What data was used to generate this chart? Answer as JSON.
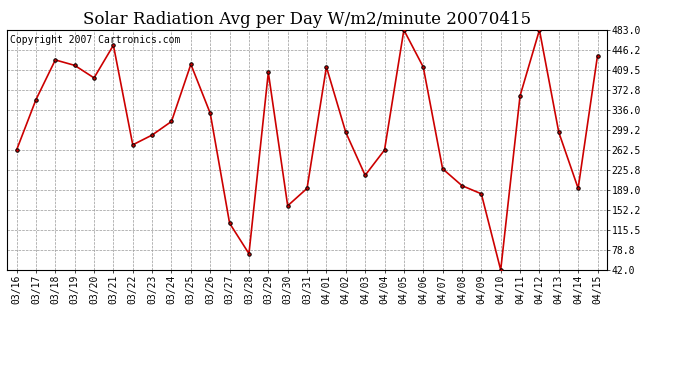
{
  "title": "Solar Radiation Avg per Day W/m2/minute 20070415",
  "copyright_text": "Copyright 2007 Cartronics.com",
  "dates": [
    "03/16",
    "03/17",
    "03/18",
    "03/19",
    "03/20",
    "03/21",
    "03/22",
    "03/23",
    "03/24",
    "03/25",
    "03/26",
    "03/27",
    "03/28",
    "03/29",
    "03/30",
    "03/31",
    "04/01",
    "04/02",
    "04/03",
    "04/04",
    "04/05",
    "04/06",
    "04/07",
    "04/08",
    "04/09",
    "04/10",
    "04/11",
    "04/12",
    "04/13",
    "04/14",
    "04/15"
  ],
  "values": [
    262.5,
    355.0,
    428.0,
    418.0,
    395.0,
    455.0,
    272.0,
    290.0,
    315.0,
    420.0,
    330.0,
    128.0,
    72.0,
    405.0,
    160.0,
    192.0,
    415.0,
    295.0,
    216.0,
    262.5,
    483.0,
    415.0,
    228.0,
    197.0,
    182.0,
    42.0,
    362.0,
    483.0,
    295.0,
    192.0,
    436.0
  ],
  "line_color": "#cc0000",
  "marker_color": "#000000",
  "bg_color": "#ffffff",
  "grid_color": "#999999",
  "ylim": [
    42.0,
    483.0
  ],
  "yticks": [
    42.0,
    78.8,
    115.5,
    152.2,
    189.0,
    225.8,
    262.5,
    299.2,
    336.0,
    372.8,
    409.5,
    446.2,
    483.0
  ],
  "ytick_labels": [
    "42.0",
    "78.8",
    "115.5",
    "152.2",
    "189.0",
    "225.8",
    "262.5",
    "299.2",
    "336.0",
    "372.8",
    "409.5",
    "446.2",
    "483.0"
  ],
  "title_fontsize": 12,
  "copyright_fontsize": 7,
  "tick_fontsize": 7
}
